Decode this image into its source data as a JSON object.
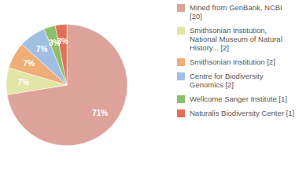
{
  "chart_data": {
    "type": "pie",
    "categories": [
      "Mined from GenBank, NCBI [20]",
      "Smithsonian Institution, National Museum of Natural History... [2]",
      "Smithsonian Institution [2]",
      "Centre for Biodiversity Genomics [2]",
      "Wellcome Sanger Institute [1]",
      "Naturalis Biodiversity Center [1]"
    ],
    "values": [
      71,
      7,
      7,
      7,
      3,
      3
    ],
    "value_labels": [
      "71%",
      "7%",
      "7%",
      "7%",
      "3%",
      "3%"
    ],
    "colors": [
      "#dda39b",
      "#e2e5a5",
      "#efae77",
      "#a1bfe2",
      "#8dbf69",
      "#e0705a"
    ],
    "data_labels": true,
    "legend": "right"
  }
}
